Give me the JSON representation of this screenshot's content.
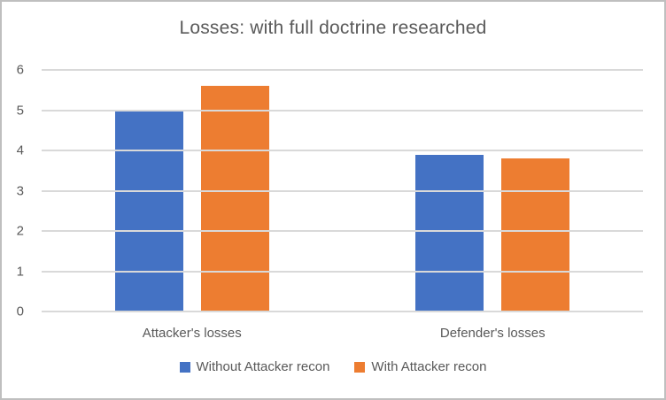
{
  "chart_data": {
    "type": "bar",
    "title": "Losses: with full doctrine researched",
    "categories": [
      "Attacker's losses",
      "Defender's losses"
    ],
    "series": [
      {
        "name": "Without Attacker recon",
        "color": "#4472C4",
        "values": [
          5.0,
          3.9
        ]
      },
      {
        "name": "With Attacker recon",
        "color": "#ED7D31",
        "values": [
          5.6,
          3.8
        ]
      }
    ],
    "xlabel": "",
    "ylabel": "",
    "ylim": [
      0,
      6
    ],
    "yticks": [
      0,
      1,
      2,
      3,
      4,
      5,
      6
    ],
    "grid": true,
    "legend_position": "bottom",
    "colors": {
      "grid": "#D9D9D9",
      "text": "#595959",
      "background": "#FFFFFF",
      "frame_border": "#BFBFBF"
    }
  }
}
